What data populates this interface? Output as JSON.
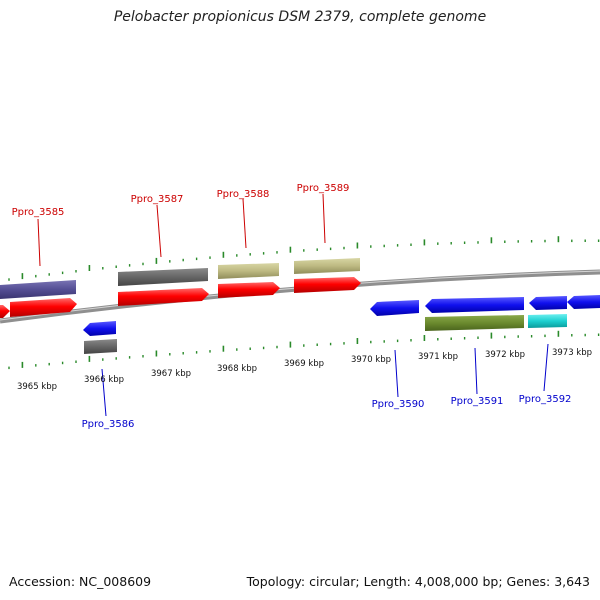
{
  "title": "Pelobacter propionicus DSM 2379, complete genome",
  "footer": {
    "accession": "Accession: NC_008609",
    "summary": "Topology: circular; Length: 4,008,000 bp; Genes: 3,643"
  },
  "colors": {
    "forward_label": "#cc0000",
    "reverse_label": "#0000cc",
    "tick": "#2a8a2a",
    "backbone": "#8f8f8f"
  },
  "kbp_labels": [
    "3965 kbp",
    "3966 kbp",
    "3967 kbp",
    "3968 kbp",
    "3969 kbp",
    "3970 kbp",
    "3971 kbp",
    "3972 kbp",
    "3973 kbp"
  ],
  "gene_labels": {
    "forward": [
      "Ppro_3585",
      "Ppro_3587",
      "Ppro_3588",
      "Ppro_3589"
    ],
    "reverse": [
      "Ppro_3586",
      "Ppro_3590",
      "Ppro_3591",
      "Ppro_3592"
    ]
  }
}
